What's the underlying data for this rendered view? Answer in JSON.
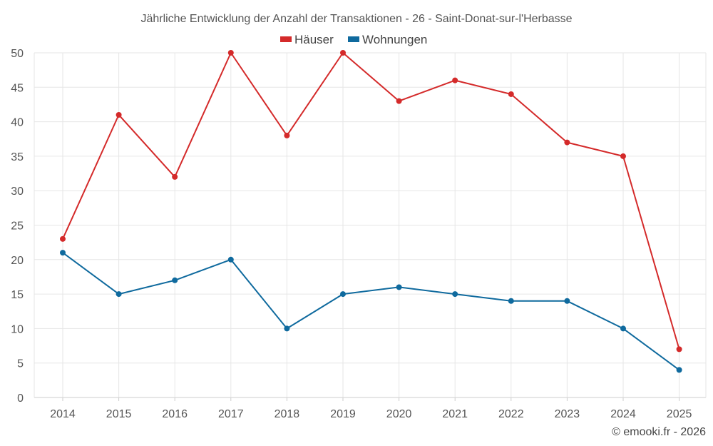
{
  "chart_data": {
    "type": "line",
    "title": "Jährliche Entwicklung der Anzahl der Transaktionen - 26 - Saint-Donat-sur-l'Herbasse",
    "categories": [
      "2014",
      "2015",
      "2016",
      "2017",
      "2018",
      "2019",
      "2020",
      "2021",
      "2022",
      "2023",
      "2024",
      "2025"
    ],
    "series": [
      {
        "name": "Häuser",
        "color": "#d42a2a",
        "values": [
          23,
          41,
          32,
          50,
          38,
          50,
          43,
          46,
          44,
          37,
          35,
          7
        ]
      },
      {
        "name": "Wohnungen",
        "color": "#0f6a9e",
        "values": [
          21,
          15,
          17,
          20,
          10,
          15,
          16,
          15,
          14,
          14,
          10,
          4
        ]
      }
    ],
    "yticks": [
      0,
      5,
      10,
      15,
      20,
      25,
      30,
      35,
      40,
      45,
      50
    ],
    "ylim": [
      0,
      50
    ],
    "xlabel": "",
    "ylabel": "",
    "grid": true,
    "legend": "top-center"
  },
  "credit": "© emooki.fr - 2026"
}
